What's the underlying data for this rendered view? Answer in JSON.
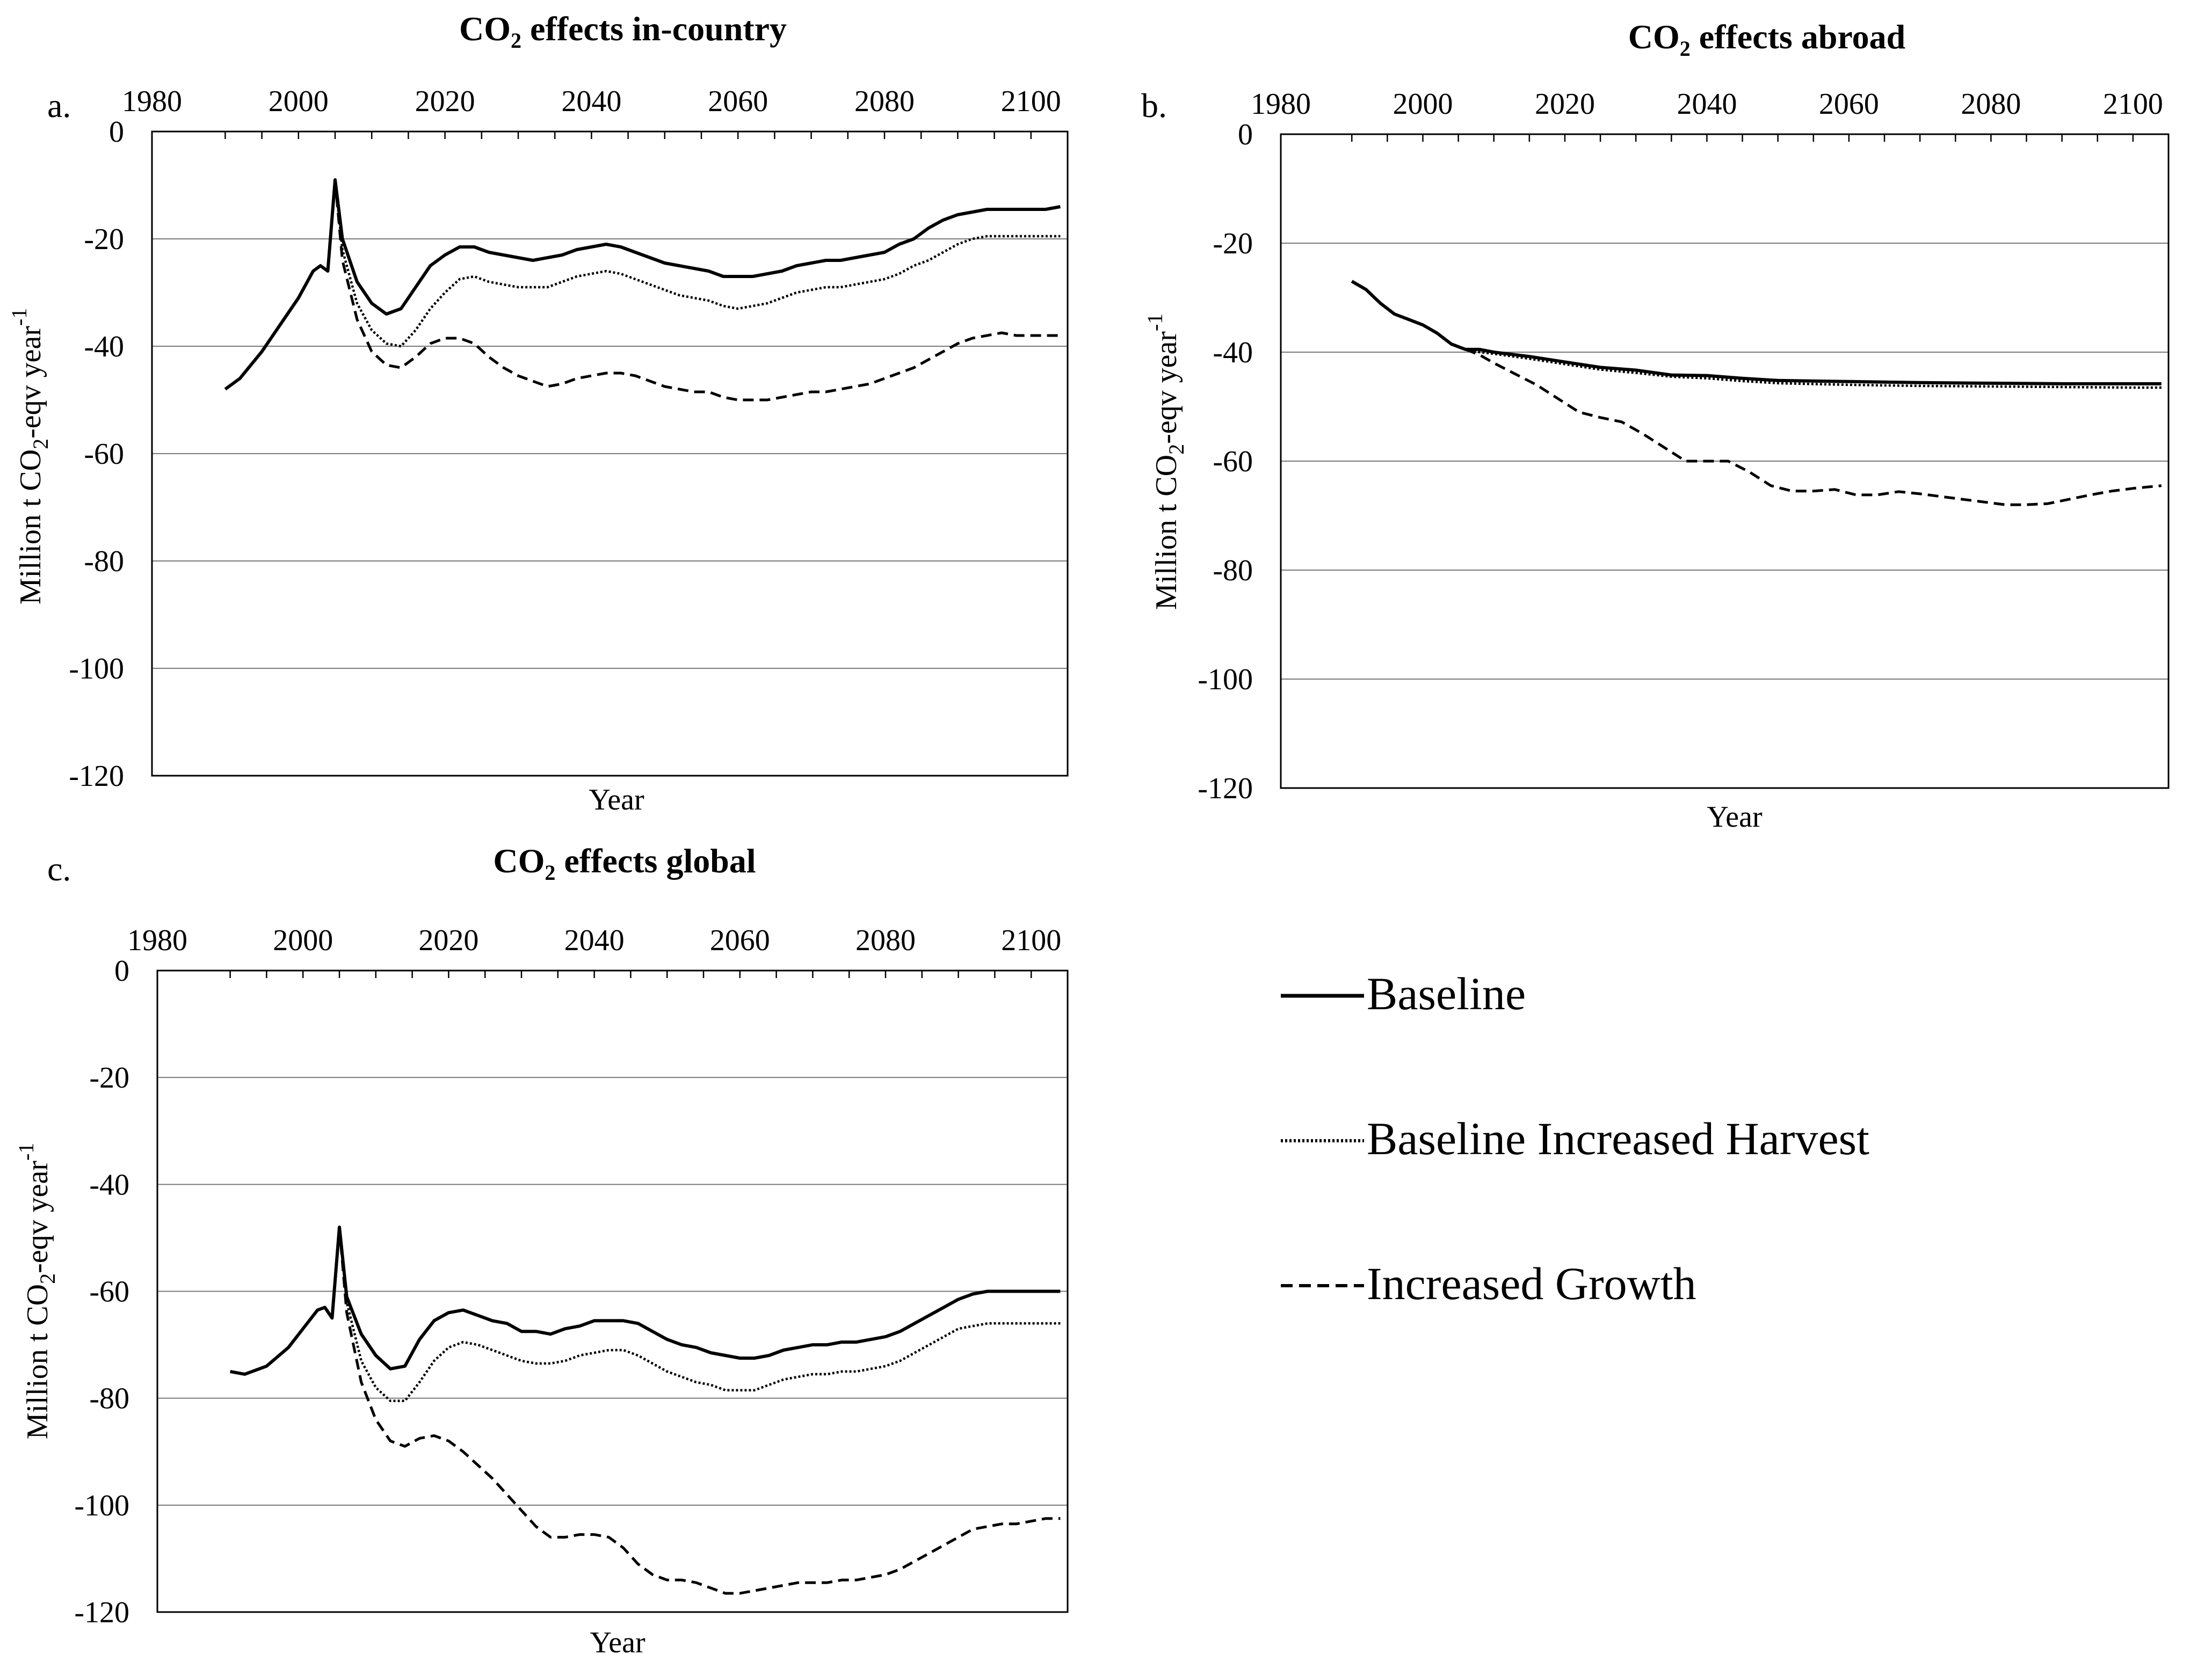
{
  "figure": {
    "legend": {
      "items": [
        {
          "label": "Baseline",
          "style": "solid"
        },
        {
          "label": "Baseline Increased Harvest",
          "style": "dotted"
        },
        {
          "label": "Increased Growth",
          "style": "dashed"
        }
      ]
    }
  },
  "chart_data": [
    {
      "type": "line",
      "panel": "a.",
      "title_main": "CO",
      "title_sub": "2",
      "title_rest": " effects in-country",
      "xlabel": "Year",
      "ylabel_pre": "Million t CO",
      "ylabel_sub": "2",
      "ylabel_mid": "-eqv year",
      "ylabel_sup": "-1",
      "xlim": [
        1980,
        2105
      ],
      "ylim": [
        -120,
        0
      ],
      "xticks": [
        1980,
        2000,
        2020,
        2040,
        2060,
        2080,
        2100
      ],
      "xtick_labels": [
        "1980",
        "2000",
        "2020",
        "2040",
        "2060",
        "2080",
        "2100"
      ],
      "yticks": [
        0,
        -20,
        -40,
        -60,
        -80,
        -100,
        -120
      ],
      "ytick_labels": [
        "0",
        "-20",
        "-40",
        "-60",
        "-80",
        "-100",
        "-120"
      ],
      "series": [
        {
          "name": "Baseline",
          "style": "solid",
          "x": [
            1990,
            1992,
            1995,
            1998,
            2000,
            2002,
            2003,
            2004,
            2005,
            2006,
            2008,
            2010,
            2012,
            2014,
            2016,
            2018,
            2020,
            2022,
            2024,
            2026,
            2028,
            2030,
            2032,
            2034,
            2036,
            2038,
            2040,
            2042,
            2044,
            2046,
            2048,
            2050,
            2052,
            2054,
            2056,
            2058,
            2060,
            2062,
            2064,
            2066,
            2068,
            2070,
            2072,
            2074,
            2076,
            2078,
            2080,
            2082,
            2084,
            2086,
            2088,
            2090,
            2092,
            2094,
            2096,
            2098,
            2100,
            2102,
            2104
          ],
          "y": [
            -48,
            -46,
            -41,
            -35,
            -31,
            -26,
            -25,
            -26,
            -9,
            -20,
            -28,
            -32,
            -34,
            -33,
            -29,
            -25,
            -23,
            -21.5,
            -21.5,
            -22.5,
            -23,
            -23.5,
            -24,
            -23.5,
            -23,
            -22,
            -21.5,
            -21,
            -21.5,
            -22.5,
            -23.5,
            -24.5,
            -25,
            -25.5,
            -26,
            -27,
            -27,
            -27,
            -26.5,
            -26,
            -25,
            -24.5,
            -24,
            -24,
            -23.5,
            -23,
            -22.5,
            -21,
            -20,
            -18,
            -16.5,
            -15.5,
            -15,
            -14.5,
            -14.5,
            -14.5,
            -14.5,
            -14.5,
            -14
          ]
        },
        {
          "name": "Baseline Increased Harvest",
          "style": "dotted",
          "x": [
            2005,
            2006,
            2008,
            2010,
            2012,
            2014,
            2016,
            2018,
            2020,
            2022,
            2024,
            2026,
            2028,
            2030,
            2032,
            2034,
            2036,
            2038,
            2040,
            2042,
            2044,
            2046,
            2048,
            2050,
            2052,
            2054,
            2056,
            2058,
            2060,
            2062,
            2064,
            2066,
            2068,
            2070,
            2072,
            2074,
            2076,
            2078,
            2080,
            2082,
            2084,
            2086,
            2088,
            2090,
            2092,
            2094,
            2096,
            2098,
            2100,
            2102,
            2104
          ],
          "y": [
            -9,
            -22,
            -32,
            -37,
            -39.5,
            -40,
            -37,
            -33,
            -30,
            -27.5,
            -27,
            -28,
            -28.5,
            -29,
            -29,
            -29,
            -28,
            -27,
            -26.5,
            -26,
            -26.5,
            -27.5,
            -28.5,
            -29.5,
            -30.5,
            -31,
            -31.5,
            -32.5,
            -33,
            -32.5,
            -32,
            -31,
            -30,
            -29.5,
            -29,
            -29,
            -28.5,
            -28,
            -27.5,
            -26.5,
            -25,
            -24,
            -22.5,
            -21,
            -20,
            -19.5,
            -19.5,
            -19.5,
            -19.5,
            -19.5,
            -19.5
          ]
        },
        {
          "name": "Increased Growth",
          "style": "dashed",
          "x": [
            2005,
            2006,
            2008,
            2010,
            2012,
            2014,
            2016,
            2018,
            2020,
            2022,
            2024,
            2026,
            2028,
            2030,
            2032,
            2034,
            2036,
            2038,
            2040,
            2042,
            2044,
            2046,
            2048,
            2050,
            2052,
            2054,
            2056,
            2058,
            2060,
            2062,
            2064,
            2066,
            2068,
            2070,
            2072,
            2074,
            2076,
            2078,
            2080,
            2082,
            2084,
            2086,
            2088,
            2090,
            2092,
            2094,
            2096,
            2098,
            2100,
            2102,
            2104
          ],
          "y": [
            -9,
            -24,
            -35,
            -41,
            -43.5,
            -44,
            -42,
            -39.5,
            -38.5,
            -38.5,
            -39.5,
            -42,
            -44,
            -45.5,
            -46.5,
            -47.5,
            -47,
            -46,
            -45.5,
            -45,
            -45,
            -45.5,
            -46.5,
            -47.5,
            -48,
            -48.5,
            -48.5,
            -49.5,
            -50,
            -50,
            -50,
            -49.5,
            -49,
            -48.5,
            -48.5,
            -48,
            -47.5,
            -47,
            -46,
            -45,
            -44,
            -42.5,
            -41,
            -39.5,
            -38.5,
            -38,
            -37.5,
            -38,
            -38,
            -38,
            -38
          ]
        }
      ]
    },
    {
      "type": "line",
      "panel": "b.",
      "title_main": "CO",
      "title_sub": "2",
      "title_rest": " effects abroad",
      "xlabel": "Year",
      "ylabel_pre": "Million t CO",
      "ylabel_sub": "2",
      "ylabel_mid": "-eqv year",
      "ylabel_sup": "-1",
      "xlim": [
        1980,
        2105
      ],
      "ylim": [
        -120,
        0
      ],
      "xticks": [
        1980,
        2000,
        2020,
        2040,
        2060,
        2080,
        2100
      ],
      "xtick_labels": [
        "1980",
        "2000",
        "2020",
        "2040",
        "2060",
        "2080",
        "2100"
      ],
      "yticks": [
        0,
        -20,
        -40,
        -60,
        -80,
        -100,
        -120
      ],
      "ytick_labels": [
        "0",
        "-20",
        "-40",
        "-60",
        "-80",
        "-100",
        "-120"
      ],
      "series": [
        {
          "name": "Baseline",
          "style": "solid",
          "x": [
            1990,
            1992,
            1994,
            1996,
            1998,
            2000,
            2002,
            2004,
            2006,
            2008,
            2010,
            2015,
            2020,
            2025,
            2030,
            2035,
            2040,
            2045,
            2050,
            2060,
            2070,
            2080,
            2090,
            2100,
            2104
          ],
          "y": [
            -27,
            -28.5,
            -31,
            -33,
            -34,
            -35,
            -36.5,
            -38.5,
            -39.5,
            -39.5,
            -40,
            -40.8,
            -41.8,
            -42.8,
            -43.3,
            -44.2,
            -44.3,
            -44.8,
            -45.2,
            -45.4,
            -45.6,
            -45.7,
            -45.8,
            -45.8,
            -45.8
          ]
        },
        {
          "name": "Baseline Increased Harvest",
          "style": "dotted",
          "x": [
            2006,
            2008,
            2010,
            2015,
            2020,
            2025,
            2030,
            2035,
            2040,
            2045,
            2050,
            2060,
            2070,
            2080,
            2090,
            2100,
            2104
          ],
          "y": [
            -39.5,
            -40,
            -40.3,
            -41.2,
            -42.2,
            -43.2,
            -43.8,
            -44.5,
            -44.8,
            -45.3,
            -45.7,
            -46,
            -46.2,
            -46.3,
            -46.4,
            -46.5,
            -46.5
          ]
        },
        {
          "name": "Increased Growth",
          "style": "dashed",
          "x": [
            2006,
            2008,
            2010,
            2013,
            2016,
            2019,
            2022,
            2025,
            2028,
            2031,
            2034,
            2037,
            2040,
            2043,
            2046,
            2049,
            2052,
            2055,
            2058,
            2061,
            2064,
            2067,
            2070,
            2073,
            2076,
            2079,
            2082,
            2085,
            2088,
            2091,
            2094,
            2097,
            2100,
            2104
          ],
          "y": [
            -39.5,
            -40.5,
            -42,
            -44,
            -46,
            -48.5,
            -51,
            -52,
            -52.8,
            -55,
            -57.5,
            -60,
            -60,
            -60,
            -62,
            -64.5,
            -65.5,
            -65.5,
            -65.2,
            -66.2,
            -66.2,
            -65.6,
            -66,
            -66.5,
            -67,
            -67.5,
            -68,
            -68,
            -67.8,
            -67,
            -66.2,
            -65.5,
            -65,
            -64.5
          ]
        }
      ]
    },
    {
      "type": "line",
      "panel": "c.",
      "title_main": "CO",
      "title_sub": "2",
      "title_rest": " effects global",
      "xlabel": "Year",
      "ylabel_pre": "Million t CO",
      "ylabel_sub": "2",
      "ylabel_mid": "-eqv year",
      "ylabel_sup": "-1",
      "xlim": [
        1980,
        2105
      ],
      "ylim": [
        -120,
        0
      ],
      "xticks": [
        1980,
        2000,
        2020,
        2040,
        2060,
        2080,
        2100
      ],
      "xtick_labels": [
        "1980",
        "2000",
        "2020",
        "2040",
        "2060",
        "2080",
        "2100"
      ],
      "yticks": [
        0,
        -20,
        -40,
        -60,
        -80,
        -100,
        -120
      ],
      "ytick_labels": [
        "0",
        "-20",
        "-40",
        "-60",
        "-80",
        "-100",
        "-120"
      ],
      "series": [
        {
          "name": "Baseline",
          "style": "solid",
          "x": [
            1990,
            1992,
            1995,
            1998,
            2000,
            2002,
            2003,
            2004,
            2005,
            2006,
            2008,
            2010,
            2012,
            2014,
            2016,
            2018,
            2020,
            2022,
            2024,
            2026,
            2028,
            2030,
            2032,
            2034,
            2036,
            2038,
            2040,
            2042,
            2044,
            2046,
            2048,
            2050,
            2052,
            2054,
            2056,
            2058,
            2060,
            2062,
            2064,
            2066,
            2068,
            2070,
            2072,
            2074,
            2076,
            2078,
            2080,
            2082,
            2084,
            2086,
            2088,
            2090,
            2092,
            2094,
            2096,
            2098,
            2100,
            2102,
            2104
          ],
          "y": [
            -75,
            -75.5,
            -74,
            -70.5,
            -67,
            -63.5,
            -63,
            -65,
            -48,
            -61,
            -68,
            -72,
            -74.5,
            -74,
            -69,
            -65.5,
            -64,
            -63.5,
            -64.5,
            -65.5,
            -66,
            -67.5,
            -67.5,
            -68,
            -67,
            -66.5,
            -65.5,
            -65.5,
            -65.5,
            -66,
            -67.5,
            -69,
            -70,
            -70.5,
            -71.5,
            -72,
            -72.5,
            -72.5,
            -72,
            -71,
            -70.5,
            -70,
            -70,
            -69.5,
            -69.5,
            -69,
            -68.5,
            -67.5,
            -66,
            -64.5,
            -63,
            -61.5,
            -60.5,
            -60,
            -60,
            -60,
            -60,
            -60,
            -60
          ]
        },
        {
          "name": "Baseline Increased Harvest",
          "style": "dotted",
          "x": [
            2005,
            2006,
            2008,
            2010,
            2012,
            2014,
            2016,
            2018,
            2020,
            2022,
            2024,
            2026,
            2028,
            2030,
            2032,
            2034,
            2036,
            2038,
            2040,
            2042,
            2044,
            2046,
            2048,
            2050,
            2052,
            2054,
            2056,
            2058,
            2060,
            2062,
            2064,
            2066,
            2068,
            2070,
            2072,
            2074,
            2076,
            2078,
            2080,
            2082,
            2084,
            2086,
            2088,
            2090,
            2092,
            2094,
            2096,
            2098,
            2100,
            2102,
            2104
          ],
          "y": [
            -48,
            -62,
            -73,
            -78,
            -80.5,
            -80.5,
            -77,
            -73,
            -70.5,
            -69.5,
            -70,
            -71,
            -72,
            -73,
            -73.5,
            -73.5,
            -73,
            -72,
            -71.5,
            -71,
            -71,
            -72,
            -73.5,
            -75,
            -76,
            -77,
            -77.5,
            -78.5,
            -78.5,
            -78.5,
            -77.5,
            -76.5,
            -76,
            -75.5,
            -75.5,
            -75,
            -75,
            -74.5,
            -74,
            -73,
            -71.5,
            -70,
            -68.5,
            -67,
            -66.5,
            -66,
            -66,
            -66,
            -66,
            -66,
            -66
          ]
        },
        {
          "name": "Increased Growth",
          "style": "dashed",
          "x": [
            2005,
            2006,
            2008,
            2010,
            2012,
            2014,
            2016,
            2018,
            2020,
            2022,
            2024,
            2026,
            2028,
            2030,
            2032,
            2034,
            2036,
            2038,
            2040,
            2042,
            2044,
            2046,
            2048,
            2050,
            2052,
            2054,
            2056,
            2058,
            2060,
            2062,
            2064,
            2066,
            2068,
            2070,
            2072,
            2074,
            2076,
            2078,
            2080,
            2082,
            2084,
            2086,
            2088,
            2090,
            2092,
            2094,
            2096,
            2098,
            2100,
            2102,
            2104
          ],
          "y": [
            -48,
            -64,
            -77,
            -84,
            -88,
            -89,
            -87.5,
            -87,
            -88,
            -90,
            -92.5,
            -95,
            -98,
            -101,
            -104,
            -106,
            -106,
            -105.5,
            -105.5,
            -106,
            -108,
            -111,
            -113,
            -114,
            -114,
            -114.5,
            -115.5,
            -116.5,
            -116.5,
            -116,
            -115.5,
            -115,
            -114.5,
            -114.5,
            -114.5,
            -114,
            -114,
            -113.5,
            -113,
            -112,
            -110.5,
            -109,
            -107.5,
            -106,
            -104.5,
            -104,
            -103.5,
            -103.5,
            -103,
            -102.5,
            -102.5
          ]
        }
      ]
    }
  ]
}
